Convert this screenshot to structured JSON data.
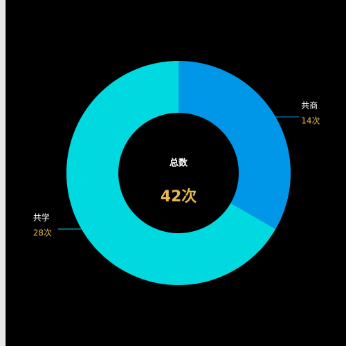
{
  "chart_data": {
    "type": "donut",
    "categories": [
      "共商",
      "共学"
    ],
    "values": [
      14,
      28
    ],
    "value_labels": [
      "14次",
      "28次"
    ],
    "colors": [
      "#0097e8",
      "#00d9e0"
    ],
    "center_title": "总数",
    "center_value_label": "42次"
  }
}
